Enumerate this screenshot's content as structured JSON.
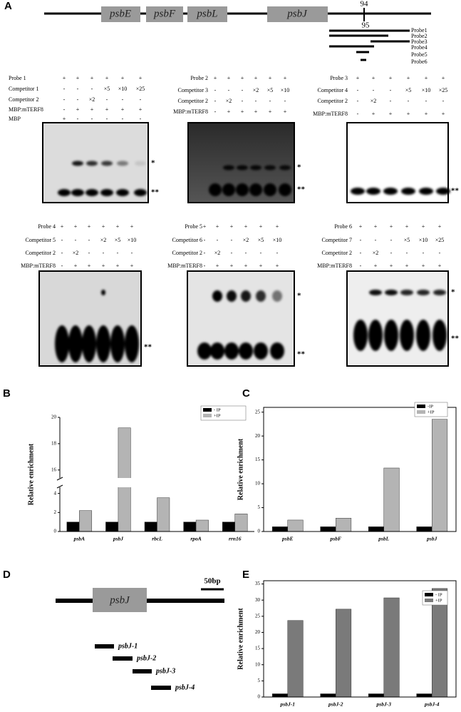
{
  "panel_labels": [
    "A",
    "B",
    "C",
    "D",
    "E"
  ],
  "gene_map": {
    "genes": [
      "psbE",
      "psbF",
      "psbL",
      "psbJ"
    ],
    "positions": [
      94,
      95
    ],
    "probes": [
      "Probe1",
      "Probe2",
      "Probe3",
      "Probe4",
      "Probe5",
      "Probe6"
    ]
  },
  "emsa": [
    {
      "rows": [
        {
          "label": "Probe 1",
          "lanes": [
            "+",
            "+",
            "+",
            "+",
            "+",
            "+"
          ]
        },
        {
          "label": "Competitor 1",
          "lanes": [
            "-",
            "-",
            "-",
            "×5",
            "×10",
            "×25"
          ]
        },
        {
          "label": "Competitor 2",
          "lanes": [
            "-",
            "-",
            "×2",
            "-",
            "-",
            "-"
          ]
        },
        {
          "label": "MBP:mTERF8",
          "lanes": [
            "-",
            "+",
            "+",
            "+",
            "+",
            "+"
          ]
        },
        {
          "label": "MBP",
          "lanes": [
            "+",
            "-",
            "-",
            "-",
            "-",
            "-"
          ]
        }
      ],
      "markers": [
        "*",
        "**"
      ]
    },
    {
      "rows": [
        {
          "label": "Probe 2",
          "lanes": [
            "+",
            "+",
            "+",
            "+",
            "+",
            "+"
          ]
        },
        {
          "label": "Competitor 3",
          "lanes": [
            "-",
            "-",
            "-",
            "×2",
            "×5",
            "×10"
          ]
        },
        {
          "label": "Competitor 2",
          "lanes": [
            "-",
            "×2",
            "-",
            "-",
            "-",
            "-"
          ]
        },
        {
          "label": "MBP:mTERF8",
          "lanes": [
            "-",
            "+",
            "+",
            "+",
            "+",
            "+"
          ]
        }
      ],
      "markers": [
        "*",
        "**"
      ]
    },
    {
      "rows": [
        {
          "label": "Probe 3",
          "lanes": [
            "+",
            "+",
            "+",
            "+",
            "+",
            "+"
          ]
        },
        {
          "label": "Competitor 4",
          "lanes": [
            "-",
            "-",
            "-",
            "×5",
            "×10",
            "×25"
          ]
        },
        {
          "label": "Competitor 2",
          "lanes": [
            "-",
            "×2",
            "-",
            "-",
            "-",
            "-"
          ]
        },
        {
          "label": "MBP:mTERF8",
          "lanes": [
            "-",
            "+",
            "+",
            "+",
            "+",
            "+"
          ]
        }
      ],
      "markers": [
        "**"
      ]
    },
    {
      "rows": [
        {
          "label": "Probe 4",
          "lanes": [
            "+",
            "+",
            "+",
            "+",
            "+",
            "+"
          ]
        },
        {
          "label": "Competitor 5",
          "lanes": [
            "-",
            "-",
            "-",
            "×2",
            "×5",
            "×10"
          ]
        },
        {
          "label": "Competitor 2",
          "lanes": [
            "-",
            "×2",
            "-",
            "-",
            "-",
            "-"
          ]
        },
        {
          "label": "MBP:mTERF8",
          "lanes": [
            "-",
            "+",
            "+",
            "+",
            "+",
            "+"
          ]
        }
      ],
      "markers": [
        "**"
      ]
    },
    {
      "rows": [
        {
          "label": "Probe 5",
          "lanes": [
            "+",
            "+",
            "+",
            "+",
            "+",
            "+"
          ]
        },
        {
          "label": "Competitor 6",
          "lanes": [
            "-",
            "-",
            "-",
            "×2",
            "×5",
            "×10"
          ]
        },
        {
          "label": "Competitor 2",
          "lanes": [
            "-",
            "×2",
            "-",
            "-",
            "-",
            "-"
          ]
        },
        {
          "label": "MBP:mTERF8",
          "lanes": [
            "-",
            "+",
            "+",
            "+",
            "+",
            "+"
          ]
        }
      ],
      "markers": [
        "*",
        "**"
      ]
    },
    {
      "rows": [
        {
          "label": "Probe 6",
          "lanes": [
            "+",
            "+",
            "+",
            "+",
            "+",
            "+"
          ]
        },
        {
          "label": "Competitor 7",
          "lanes": [
            "-",
            "-",
            "-",
            "×5",
            "×10",
            "×25"
          ]
        },
        {
          "label": "Competitor 2",
          "lanes": [
            "-",
            "×2",
            "-",
            "-",
            "-",
            "-"
          ]
        },
        {
          "label": "MBP:mTERF8",
          "lanes": [
            "-",
            "+",
            "+",
            "+",
            "+",
            "+"
          ]
        }
      ],
      "markers": [
        "*",
        "**"
      ]
    }
  ],
  "probe_map": {
    "gene": "psbJ",
    "scale": "50bp",
    "probes": [
      "psbJ-1",
      "psbJ-2",
      "psbJ-3",
      "psbJ-4"
    ]
  },
  "chart_data": [
    {
      "type": "bar",
      "y_label": "Relative enrichment",
      "categories": [
        "psbA",
        "psbJ",
        "rbcL",
        "rpoA",
        "rrn16"
      ],
      "series": [
        {
          "name": "- IP",
          "color": "#000000",
          "values": [
            1,
            1,
            1,
            1,
            1
          ]
        },
        {
          "name": "+IP",
          "color": "#b4b4b4",
          "values": [
            2.2,
            19.2,
            3.55,
            1.2,
            1.85
          ]
        }
      ],
      "ylim": [
        0,
        20
      ],
      "ybreak": [
        4.5,
        15.5
      ],
      "yticks": [
        0,
        2,
        4,
        16,
        18,
        20
      ],
      "legend": "upper right"
    },
    {
      "type": "bar",
      "y_label": "Relative enrichment",
      "categories": [
        "psbE",
        "psbF",
        "psbL",
        "psbJ"
      ],
      "series": [
        {
          "name": "-IP",
          "color": "#000000",
          "values": [
            1,
            1,
            1,
            1
          ]
        },
        {
          "name": "+IP",
          "color": "#b4b4b4",
          "values": [
            2.4,
            2.8,
            13.3,
            23.5
          ]
        }
      ],
      "ylim": [
        0,
        26
      ],
      "yticks": [
        0,
        5,
        10,
        15,
        20,
        25
      ],
      "legend": "upper right"
    },
    {
      "type": "bar",
      "y_label": "Relative enrichment",
      "categories": [
        "psbJ-1",
        "psbJ-2",
        "psbJ-3",
        "psbJ-4"
      ],
      "series": [
        {
          "name": "- IP",
          "color": "#000000",
          "values": [
            1,
            1,
            1,
            1
          ]
        },
        {
          "name": "+IP",
          "color": "#7a7a7a",
          "values": [
            23.7,
            27.2,
            30.7,
            33.6
          ]
        }
      ],
      "ylim": [
        0,
        36
      ],
      "yticks": [
        0,
        5,
        10,
        15,
        20,
        25,
        30,
        35
      ],
      "legend": "upper right"
    }
  ]
}
